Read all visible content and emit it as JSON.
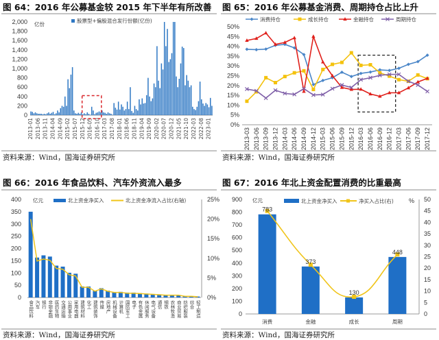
{
  "panels": [
    {
      "title": "图 64：2016 年公募基金较 2015 年下半年有所改善",
      "source": "资料来源：Wind，国海证券研究所"
    },
    {
      "title": "图 65：2016 年公募基金消费、周期持仓占比上升",
      "source": "资料来源：Wind，国海证券研究所"
    },
    {
      "title": "图 66：2016 年食品饮料、汽车外资流入最多",
      "source": "资料来源：Wind，国海证券研究所"
    },
    {
      "title": "图 67：2016 年北上资金配置消费的比重最高",
      "source": "资料来源：Wind，国海证券研究所"
    }
  ],
  "chart_data": [
    {
      "type": "bar",
      "unit": "亿份",
      "series_name": "股票型+偏股混合发行份额(亿份)",
      "color": "#2f78c4",
      "ylim": [
        0,
        2000
      ],
      "yticks": [
        "0",
        "200",
        "400",
        "600",
        "800",
        "1,000",
        "1,200",
        "1,400",
        "1,600",
        "1,800",
        "2,000"
      ],
      "xticks": [
        "2013-01",
        "2013-06",
        "2013-11",
        "2014-04",
        "2014-09",
        "2015-02",
        "2015-07",
        "2015-12",
        "2016-05",
        "2016-10",
        "2017-03",
        "2017-08",
        "2018-01",
        "2018-06",
        "2018-11",
        "2019-04",
        "2019-09",
        "2020-02",
        "2020-07",
        "2020-12",
        "2021-05",
        "2021-10",
        "2022-03",
        "2022-08",
        "2023-01"
      ],
      "x_start": "2013-01",
      "values": [
        80,
        70,
        40,
        60,
        40,
        30,
        30,
        30,
        20,
        30,
        20,
        40,
        60,
        30,
        50,
        70,
        20,
        40,
        100,
        60,
        150,
        200,
        180,
        400,
        200,
        770,
        580,
        870,
        1030,
        100,
        40,
        30,
        50,
        30,
        60,
        20,
        40,
        20,
        60,
        30,
        10,
        180,
        100,
        20,
        50,
        60,
        80,
        60,
        100,
        60,
        50,
        30,
        60,
        40,
        30,
        10,
        260,
        160,
        120,
        290,
        120,
        230,
        180,
        100,
        130,
        290,
        130,
        600,
        90,
        50,
        200,
        130,
        100,
        340,
        230,
        360,
        250,
        260,
        430,
        800,
        400,
        300,
        360,
        680,
        600,
        1480,
        740,
        580,
        1110,
        980,
        2000,
        1480,
        1850,
        1140,
        1200,
        1330,
        2000,
        2000,
        830,
        600,
        780,
        1110,
        1470,
        1440,
        640,
        860,
        740,
        600,
        640,
        180,
        130,
        110,
        180,
        300,
        720,
        340,
        250,
        200,
        260,
        230,
        170,
        370,
        200
      ],
      "highlight": {
        "from": "2015-12",
        "to": "2016-12",
        "color": "#d9262b"
      }
    },
    {
      "type": "line",
      "ylim": [
        0,
        50
      ],
      "yticks": [
        "0%",
        "5%",
        "10%",
        "15%",
        "20%",
        "25%",
        "30%",
        "35%",
        "40%",
        "45%",
        "50%"
      ],
      "categories": [
        "2013-03",
        "2013-06",
        "2013-09",
        "2013-12",
        "2014-03",
        "2014-06",
        "2014-09",
        "2014-12",
        "2015-03",
        "2015-06",
        "2015-09",
        "2015-12",
        "2016-03",
        "2016-06",
        "2016-09",
        "2016-12",
        "2017-03",
        "2017-06",
        "2017-09",
        "2017-12"
      ],
      "series": [
        {
          "name": "消费持仓",
          "color": "#4a86c8",
          "marker": "diamond",
          "values": [
            38.5,
            38.3,
            38.6,
            40.5,
            41,
            39.2,
            35.8,
            20.5,
            22.6,
            24,
            26.8,
            24.6,
            26.2,
            26.9,
            28,
            27.7,
            28.8,
            30.8,
            32.2,
            35.5
          ]
        },
        {
          "name": "成长持仓",
          "color": "#f4c20d",
          "marker": "square",
          "values": [
            12,
            16.8,
            24,
            21.5,
            24.6,
            26.5,
            27.5,
            18,
            28.2,
            30.8,
            31.8,
            36.7,
            30.3,
            30.6,
            26.5,
            24.8,
            23,
            22.2,
            25.4,
            23.5
          ]
        },
        {
          "name": "金融持仓",
          "color": "#e0201b",
          "marker": "triangle",
          "values": [
            43,
            44,
            46.8,
            41,
            42,
            44.3,
            17,
            45,
            32,
            25,
            19,
            18,
            18.1,
            15.7,
            14.5,
            16.3,
            16.3,
            18.8,
            21.8,
            23.7
          ]
        },
        {
          "name": "周期持仓",
          "color": "#7f5fa8",
          "marker": "x",
          "values": [
            18.2,
            17.3,
            13.6,
            17.6,
            16,
            15.5,
            18.4,
            15.2,
            15.4,
            18.4,
            20.3,
            19,
            23,
            24,
            25.2,
            25.7,
            25.7,
            22.2,
            20.3,
            17
          ]
        }
      ],
      "highlight": {
        "from": "2016-03",
        "to": "2016-12",
        "y_range": [
          6.5,
          35.5
        ],
        "color": "#222"
      }
    },
    {
      "type": "bar",
      "unit": "亿元",
      "ylim": [
        0,
        400
      ],
      "yticks": [
        "0",
        "50",
        "100",
        "150",
        "200",
        "250",
        "300",
        "350",
        "400"
      ],
      "y2lim": [
        0,
        25
      ],
      "y2ticks": [
        "0%",
        "5%",
        "10%",
        "15%",
        "20%",
        "25%"
      ],
      "categories": [
        "食品饮料",
        "汽车",
        "银行",
        "非银金融",
        "医药生物",
        "交通运输",
        "公用事业",
        "家用电器",
        "建筑材料",
        "化工",
        "建筑装饰",
        "传媒",
        "房地产",
        "机械设备",
        "计算机",
        "国防军工",
        "电子",
        "有色金属",
        "休闲服务",
        "电气设备",
        "通信",
        "钢铁",
        "农林牧渔",
        "商业贸易",
        "纺织服装",
        "综合",
        "轻工制造"
      ],
      "series": [
        {
          "name": "北上资金净买入",
          "color": "#1f6fc6",
          "axis": "left",
          "values": [
            350,
            163,
            172,
            167,
            130,
            126,
            101,
            97,
            45,
            45,
            27,
            38,
            28,
            22,
            23,
            20,
            20,
            18,
            16,
            14,
            13,
            10,
            11,
            10,
            6,
            5,
            4
          ]
        },
        {
          "name": "北上资金净流入占比(右轴)",
          "color": "#f0c419",
          "axis": "right",
          "values": [
            20,
            9.3,
            9.8,
            9.5,
            7.4,
            7.2,
            5.8,
            5.5,
            2.6,
            2.6,
            1.6,
            2.2,
            1.6,
            1.3,
            1.3,
            1.1,
            1.1,
            1.0,
            0.9,
            0.8,
            0.7,
            0.6,
            0.6,
            0.6,
            0.3,
            0.3,
            0.2
          ]
        }
      ]
    },
    {
      "type": "bar",
      "unit": "亿元",
      "unit_right": "%",
      "ylim": [
        0,
        900
      ],
      "yticks": [
        "0",
        "100",
        "200",
        "300",
        "400",
        "500",
        "600",
        "700",
        "800",
        "900"
      ],
      "y2lim": [
        0,
        50
      ],
      "y2ticks": [
        "0",
        "5",
        "10",
        "15",
        "20",
        "25",
        "30",
        "35",
        "40",
        "45",
        "50"
      ],
      "categories": [
        "消费",
        "金融",
        "成长",
        "周期"
      ],
      "data_labels": [
        "783",
        "373",
        "130",
        "448"
      ],
      "series": [
        {
          "name": "北上资金净买入",
          "color": "#1f6fc6",
          "axis": "left",
          "values": [
            783,
            373,
            130,
            448
          ]
        },
        {
          "name": "净买入占比(右)",
          "color": "#f0c419",
          "axis": "right",
          "values": [
            45,
            21.5,
            7.5,
            26
          ]
        }
      ]
    }
  ]
}
